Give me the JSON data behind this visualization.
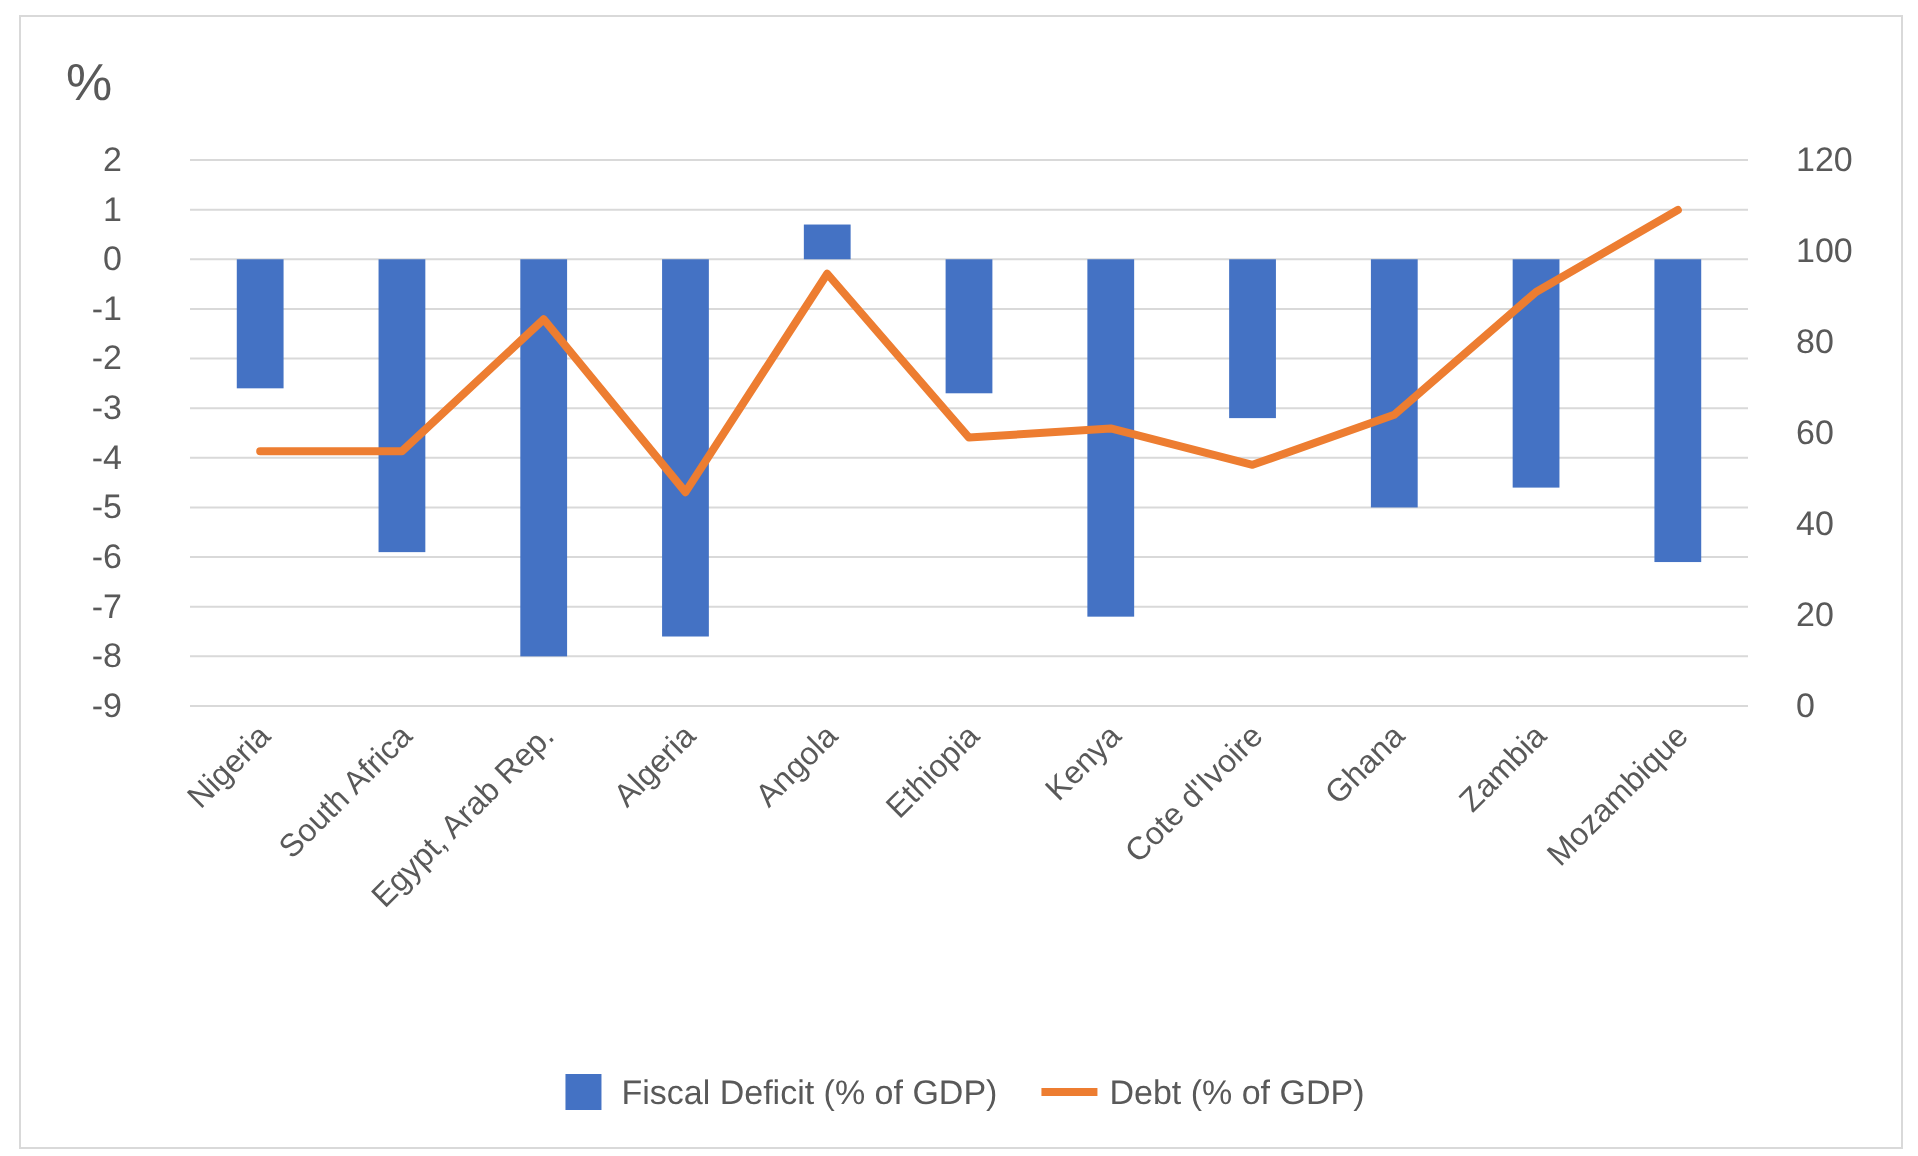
{
  "chart_data": {
    "type": "bar",
    "ylabel": "%",
    "categories": [
      "Nigeria",
      "South Africa",
      "Egypt, Arab Rep.",
      "Algeria",
      "Angola",
      "Ethiopia",
      "Kenya",
      "Cote d'Ivoire",
      "Ghana",
      "Zambia",
      "Mozambique"
    ],
    "series": [
      {
        "name": "Fiscal Deficit (% of GDP)",
        "color": "#4472c4",
        "values": [
          -2.6,
          -5.9,
          -8.0,
          -7.6,
          0.7,
          -2.7,
          -7.2,
          -3.2,
          -5.0,
          -4.6,
          -6.1
        ]
      },
      {
        "name": "Debt (% of GDP)",
        "type": "line",
        "axis": "y2",
        "color": "#ed7d31",
        "values": [
          56,
          56,
          85,
          47,
          95,
          59,
          61,
          53,
          64,
          91,
          109
        ]
      }
    ],
    "ylim": [
      -9,
      2
    ],
    "yticks": [
      -9,
      -8,
      -7,
      -6,
      -5,
      -4,
      -3,
      -2,
      -1,
      0,
      1,
      2
    ],
    "y2lim": [
      0,
      120
    ],
    "y2ticks": [
      0,
      20,
      40,
      60,
      80,
      100,
      120
    ],
    "grid": "y",
    "legend": "bottom",
    "marker": "none",
    "line_style": "solid"
  }
}
